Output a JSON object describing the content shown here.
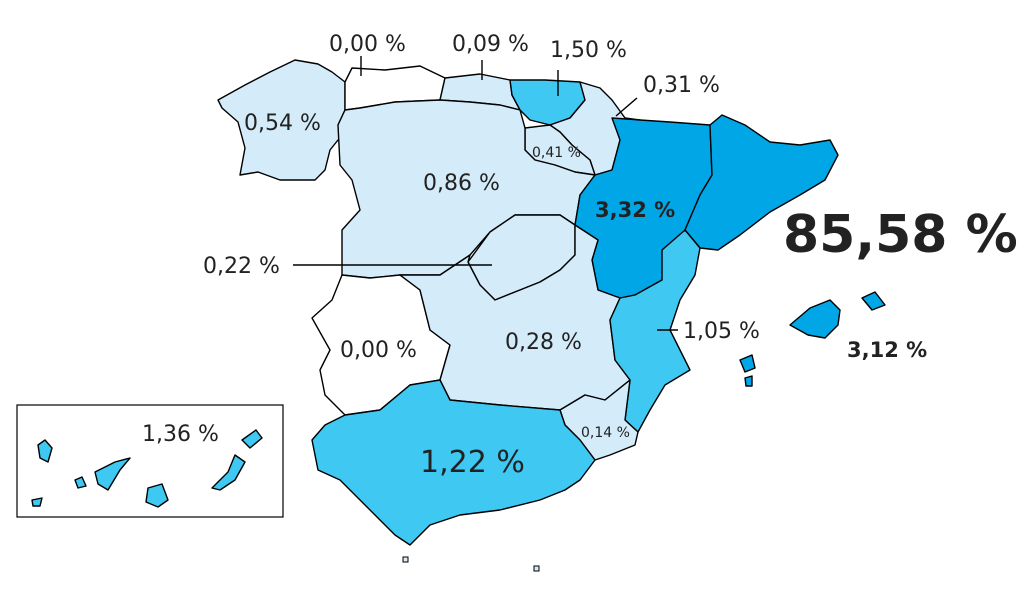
{
  "colors": {
    "none": "#ffffff",
    "low": "#d4ebfa",
    "mid": "#3fc8f2",
    "high": "#00a6e6",
    "accent_text": "#00aeef"
  },
  "regions": {
    "galicia": {
      "value": "0,54 %",
      "level": "low"
    },
    "asturias": {
      "value": "0,00 %",
      "level": "none"
    },
    "cantabria": {
      "value": "0,09 %",
      "level": "low"
    },
    "pais_vasco": {
      "value": "1,50 %",
      "level": "mid"
    },
    "navarra": {
      "value": "0,31 %",
      "level": "low"
    },
    "la_rioja": {
      "value": "0,41 %",
      "level": "low"
    },
    "castilla_leon": {
      "value": "0,86 %",
      "level": "low"
    },
    "aragon": {
      "value": "3,32 %",
      "level": "high"
    },
    "cataluna": {
      "value": "85,58 %",
      "level": "high"
    },
    "madrid": {
      "value": "0,22 %",
      "level": "low"
    },
    "extremadura": {
      "value": "0,00 %",
      "level": "none"
    },
    "castilla_la_mancha": {
      "value": "0,28 %",
      "level": "low"
    },
    "valencia": {
      "value": "1,05 %",
      "level": "mid"
    },
    "baleares": {
      "value": "3,12 %",
      "level": "high"
    },
    "murcia": {
      "value": "0,14 %",
      "level": "low"
    },
    "andalucia": {
      "value": "1,22 %",
      "level": "mid"
    },
    "canarias": {
      "value": "1,36 %",
      "level": "mid"
    }
  }
}
